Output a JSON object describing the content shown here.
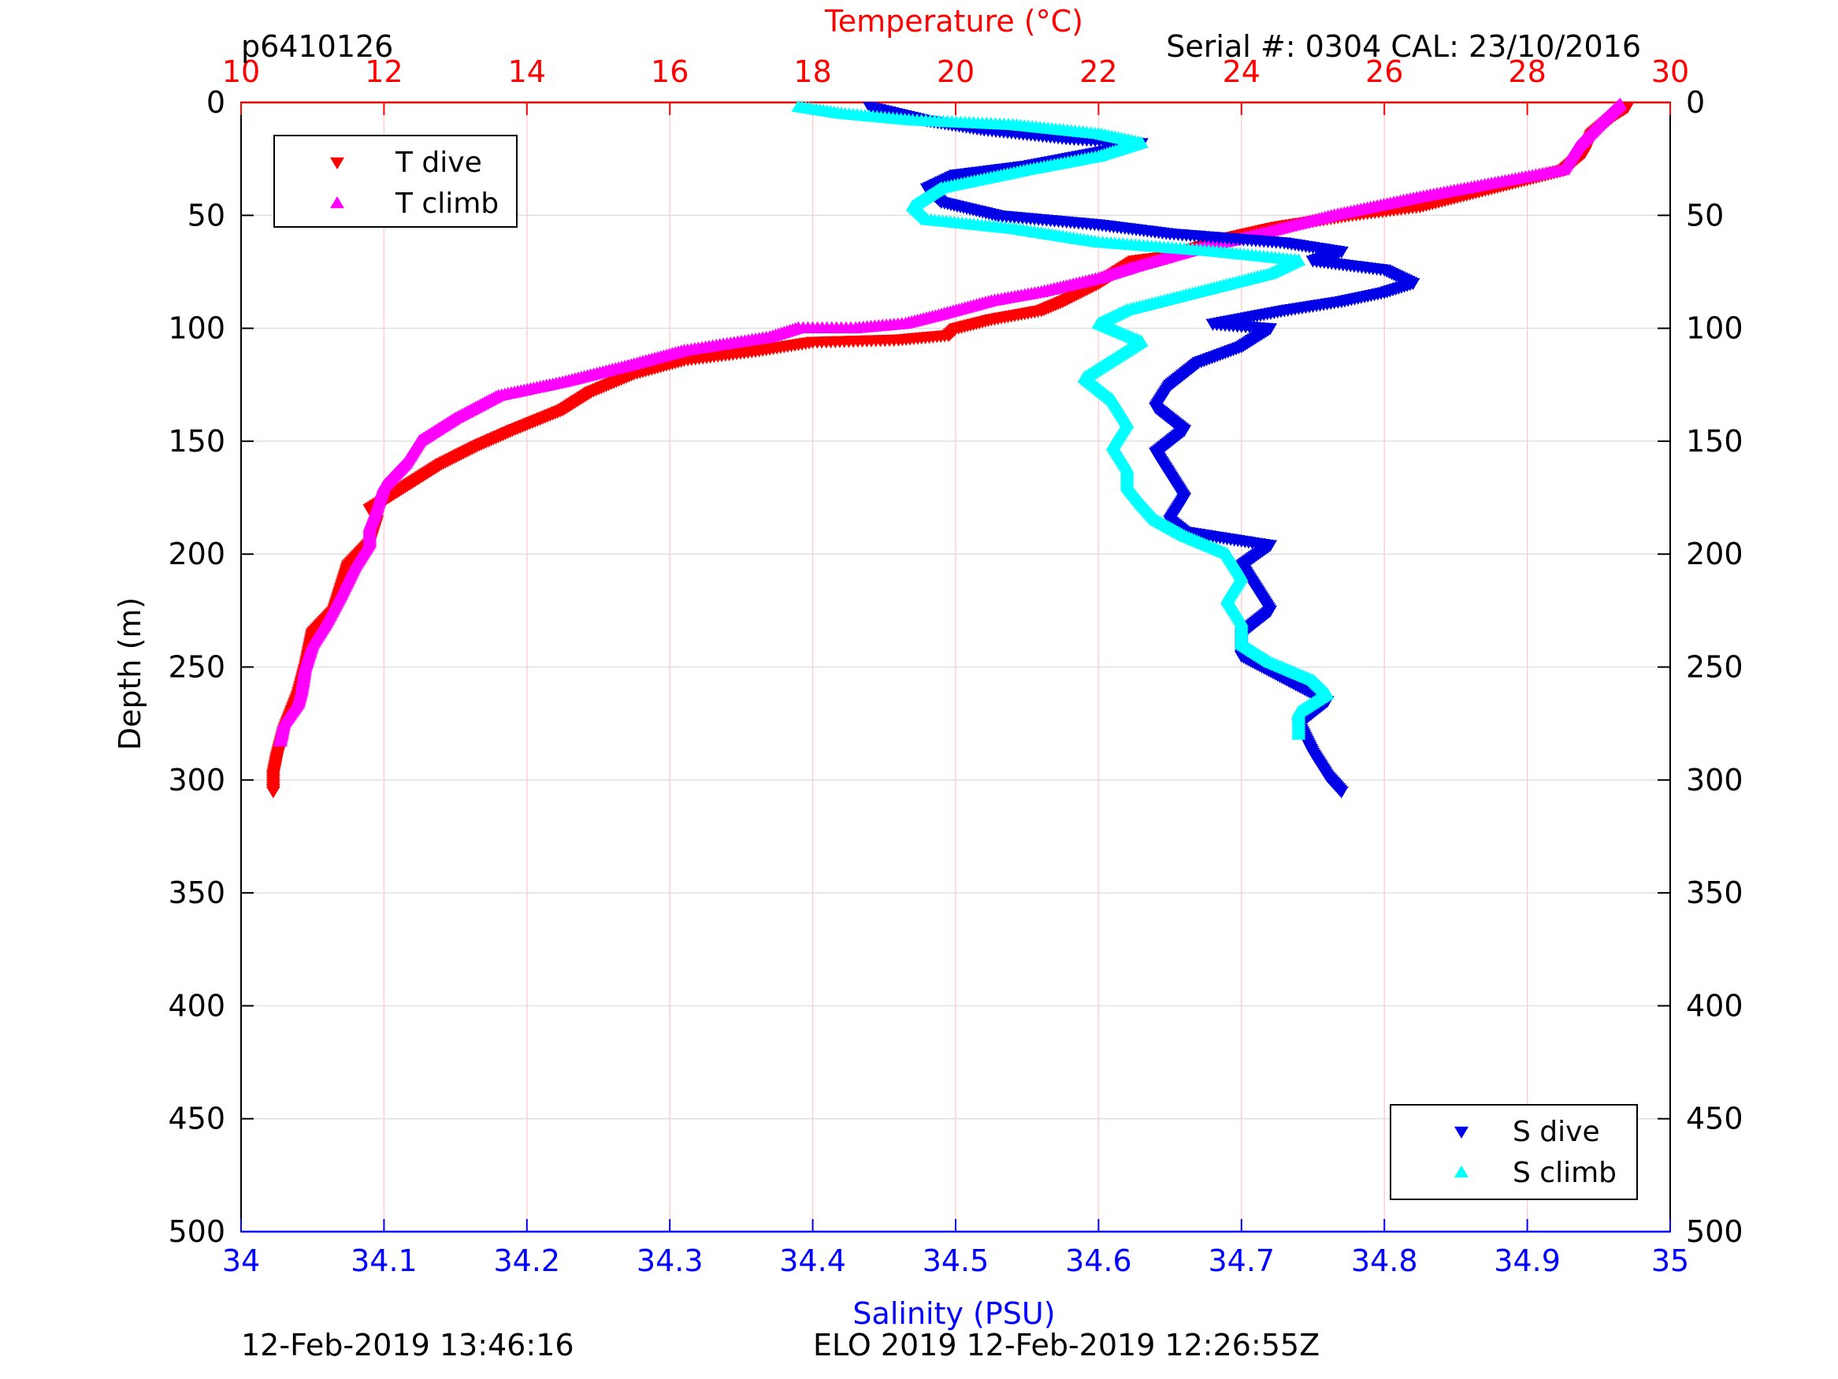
{
  "header": {
    "profile_id": "p6410126",
    "serial": "Serial #: 0304  CAL: 23/10/2016"
  },
  "footer": {
    "left_timestamp": "12-Feb-2019 13:46:16",
    "center_info": "ELO 2019 12-Feb-2019 12:26:55Z"
  },
  "colors": {
    "t_dive": "#ff0000",
    "t_climb": "#ff00ff",
    "s_dive": "#0000e6",
    "s_climb": "#00ffff",
    "temp_axis": "#ff0000",
    "sal_axis": "#0000ff",
    "grid_depth": "#e0e0e0",
    "grid_temp": "#ffd0d0"
  },
  "chart_data": {
    "type": "scatter",
    "top_axis": {
      "label": "Temperature (°C)",
      "range": [
        10,
        30
      ],
      "ticks": [
        "10",
        "12",
        "14",
        "16",
        "18",
        "20",
        "22",
        "24",
        "26",
        "28",
        "30"
      ]
    },
    "bottom_axis": {
      "label": "Salinity (PSU)",
      "range": [
        34,
        35
      ],
      "ticks": [
        "34",
        "34.1",
        "34.2",
        "34.3",
        "34.4",
        "34.5",
        "34.6",
        "34.7",
        "34.8",
        "34.9",
        "35"
      ]
    },
    "y_axis": {
      "label": "Depth (m)",
      "range": [
        0,
        500
      ],
      "reversed": true,
      "ticks": [
        "0",
        "50",
        "100",
        "150",
        "200",
        "250",
        "300",
        "350",
        "400",
        "450",
        "500"
      ]
    },
    "grid": true,
    "legends": [
      {
        "placement": "top-left",
        "entries": [
          "T dive",
          "T climb"
        ]
      },
      {
        "placement": "bottom-right",
        "entries": [
          "S dive",
          "S climb"
        ]
      }
    ],
    "series": [
      {
        "name": "T dive",
        "axis": "temperature",
        "marker": "triangle-down",
        "points": [
          [
            29.4,
            2
          ],
          [
            29.2,
            6
          ],
          [
            28.9,
            14
          ],
          [
            28.8,
            22
          ],
          [
            28.5,
            30
          ],
          [
            28.0,
            34
          ],
          [
            27.5,
            38
          ],
          [
            26.5,
            46
          ],
          [
            25.5,
            50
          ],
          [
            24.5,
            55
          ],
          [
            23.8,
            60
          ],
          [
            23.0,
            68
          ],
          [
            22.5,
            70
          ],
          [
            22.0,
            80
          ],
          [
            21.5,
            88
          ],
          [
            21.2,
            92
          ],
          [
            20.5,
            96
          ],
          [
            20.0,
            100
          ],
          [
            19.9,
            103
          ],
          [
            19.2,
            105
          ],
          [
            18.0,
            106
          ],
          [
            17.2,
            110
          ],
          [
            16.2,
            114
          ],
          [
            15.5,
            120
          ],
          [
            14.9,
            128
          ],
          [
            14.5,
            136
          ],
          [
            13.8,
            145
          ],
          [
            13.3,
            152
          ],
          [
            12.8,
            160
          ],
          [
            12.3,
            170
          ],
          [
            11.8,
            180
          ],
          [
            11.9,
            185
          ],
          [
            11.8,
            195
          ],
          [
            11.5,
            205
          ],
          [
            11.4,
            215
          ],
          [
            11.3,
            225
          ],
          [
            11.0,
            235
          ],
          [
            10.9,
            250
          ],
          [
            10.8,
            262
          ],
          [
            10.6,
            278
          ],
          [
            10.5,
            290
          ],
          [
            10.45,
            298
          ],
          [
            10.45,
            305
          ]
        ]
      },
      {
        "name": "T climb",
        "axis": "temperature",
        "marker": "triangle-up",
        "points": [
          [
            29.3,
            1
          ],
          [
            29.0,
            10
          ],
          [
            28.7,
            20
          ],
          [
            28.5,
            30
          ],
          [
            27.5,
            36
          ],
          [
            26.5,
            42
          ],
          [
            25.3,
            50
          ],
          [
            24.3,
            58
          ],
          [
            23.5,
            64
          ],
          [
            22.5,
            73
          ],
          [
            22.0,
            78
          ],
          [
            21.2,
            84
          ],
          [
            20.5,
            88
          ],
          [
            19.8,
            94
          ],
          [
            19.3,
            98
          ],
          [
            18.6,
            100
          ],
          [
            17.8,
            100
          ],
          [
            17.4,
            104
          ],
          [
            16.2,
            110
          ],
          [
            15.5,
            116
          ],
          [
            14.5,
            124
          ],
          [
            13.6,
            130
          ],
          [
            13.0,
            140
          ],
          [
            12.5,
            150
          ],
          [
            12.3,
            160
          ],
          [
            12.0,
            170
          ],
          [
            11.9,
            180
          ],
          [
            11.8,
            188
          ],
          [
            11.8,
            195
          ],
          [
            11.6,
            205
          ],
          [
            11.4,
            218
          ],
          [
            11.2,
            230
          ],
          [
            11.0,
            240
          ],
          [
            10.9,
            250
          ],
          [
            10.85,
            260
          ],
          [
            10.8,
            266
          ],
          [
            10.6,
            275
          ],
          [
            10.55,
            283
          ]
        ]
      },
      {
        "name": "S dive",
        "axis": "salinity",
        "marker": "triangle-down",
        "points": [
          [
            34.44,
            2
          ],
          [
            34.48,
            8
          ],
          [
            34.52,
            12
          ],
          [
            34.58,
            16
          ],
          [
            34.63,
            18
          ],
          [
            34.6,
            22
          ],
          [
            34.55,
            28
          ],
          [
            34.5,
            32
          ],
          [
            34.48,
            38
          ],
          [
            34.49,
            44
          ],
          [
            34.53,
            50
          ],
          [
            34.6,
            54
          ],
          [
            34.65,
            58
          ],
          [
            34.73,
            62
          ],
          [
            34.77,
            66
          ],
          [
            34.75,
            70
          ],
          [
            34.8,
            74
          ],
          [
            34.82,
            80
          ],
          [
            34.8,
            84
          ],
          [
            34.77,
            88
          ],
          [
            34.73,
            92
          ],
          [
            34.68,
            98
          ],
          [
            34.72,
            100
          ],
          [
            34.7,
            108
          ],
          [
            34.67,
            115
          ],
          [
            34.65,
            125
          ],
          [
            34.64,
            135
          ],
          [
            34.66,
            145
          ],
          [
            34.64,
            155
          ],
          [
            34.65,
            165
          ],
          [
            34.66,
            175
          ],
          [
            34.65,
            185
          ],
          [
            34.66,
            190
          ],
          [
            34.72,
            196
          ],
          [
            34.7,
            205
          ],
          [
            34.71,
            215
          ],
          [
            34.72,
            225
          ],
          [
            34.7,
            235
          ],
          [
            34.7,
            245
          ],
          [
            34.73,
            255
          ],
          [
            34.76,
            265
          ],
          [
            34.74,
            275
          ],
          [
            34.75,
            288
          ],
          [
            34.76,
            298
          ],
          [
            34.77,
            305
          ]
        ]
      },
      {
        "name": "S climb",
        "axis": "salinity",
        "marker": "triangle-up",
        "points": [
          [
            34.39,
            2
          ],
          [
            34.42,
            5
          ],
          [
            34.47,
            8
          ],
          [
            34.54,
            10
          ],
          [
            34.6,
            14
          ],
          [
            34.63,
            18
          ],
          [
            34.6,
            24
          ],
          [
            34.55,
            30
          ],
          [
            34.49,
            38
          ],
          [
            34.47,
            46
          ],
          [
            34.48,
            52
          ],
          [
            34.54,
            56
          ],
          [
            34.6,
            62
          ],
          [
            34.68,
            66
          ],
          [
            34.74,
            70
          ],
          [
            34.72,
            76
          ],
          [
            34.67,
            84
          ],
          [
            34.62,
            92
          ],
          [
            34.6,
            98
          ],
          [
            34.63,
            106
          ],
          [
            34.61,
            114
          ],
          [
            34.59,
            122
          ],
          [
            34.61,
            132
          ],
          [
            34.62,
            142
          ],
          [
            34.61,
            152
          ],
          [
            34.62,
            162
          ],
          [
            34.62,
            170
          ],
          [
            34.63,
            178
          ],
          [
            34.64,
            185
          ],
          [
            34.66,
            192
          ],
          [
            34.69,
            200
          ],
          [
            34.7,
            210
          ],
          [
            34.69,
            220
          ],
          [
            34.7,
            230
          ],
          [
            34.7,
            240
          ],
          [
            34.72,
            248
          ],
          [
            34.75,
            256
          ],
          [
            34.76,
            262
          ],
          [
            34.74,
            270
          ],
          [
            34.74,
            280
          ]
        ]
      }
    ]
  }
}
